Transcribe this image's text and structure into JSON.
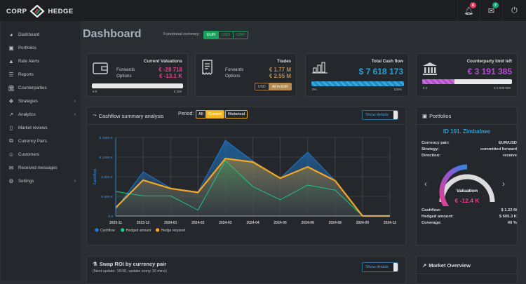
{
  "app": {
    "logo_left": "CORP",
    "logo_right": "HEDGE"
  },
  "topbar": {
    "notifications": {
      "icon": "bell-icon",
      "count": "6",
      "color": "#e0405a"
    },
    "messages": {
      "icon": "envelope-icon",
      "count": "7",
      "color": "#17a673"
    },
    "power": {
      "icon": "power-icon"
    }
  },
  "sidebar": {
    "items": [
      {
        "label": "Dashboard",
        "icon": "tachometer-icon",
        "has_children": false
      },
      {
        "label": "Portfolios",
        "icon": "briefcase-icon",
        "has_children": false
      },
      {
        "label": "Rate Alerts",
        "icon": "bell-icon",
        "has_children": false
      },
      {
        "label": "Reports",
        "icon": "list-alt-icon",
        "has_children": false
      },
      {
        "label": "Counterparties",
        "icon": "bank-icon",
        "has_children": false
      },
      {
        "label": "Strategies",
        "icon": "cubes-icon",
        "has_children": true
      },
      {
        "label": "Analytics",
        "icon": "area-chart-icon",
        "has_children": true
      },
      {
        "label": "Market reviews",
        "icon": "file-icon",
        "has_children": false
      },
      {
        "label": "Currency Pairs",
        "icon": "clone-icon",
        "has_children": false
      },
      {
        "label": "Customers",
        "icon": "users-icon",
        "has_children": false
      },
      {
        "label": "Received messages",
        "icon": "envelope-icon",
        "has_children": false
      },
      {
        "label": "Settings",
        "icon": "cogs-icon",
        "has_children": true
      }
    ]
  },
  "header": {
    "title": "Dashboard",
    "functional_currency_label": "Functional currency:",
    "currencies": [
      {
        "label": "EUR",
        "active": true
      },
      {
        "label": "USD",
        "active": false
      },
      {
        "label": "GBP",
        "active": false
      }
    ]
  },
  "kpis": {
    "valuations": {
      "title": "Current Valuations",
      "forwards_label": "Forwards",
      "forwards_value": "€ -28 718",
      "options_label": "Options",
      "options_value": "€ -13.1 K",
      "bar_min": "€ 0",
      "bar_max": "€ 200",
      "bar_fill": 0,
      "value_color": "#e83e8c"
    },
    "trades": {
      "title": "Trades",
      "forwards_label": "Forwards",
      "forwards_value": "€ 1.77 M",
      "options_label": "Options",
      "options_value": "€ 2.55 M",
      "btn_usd": "USD",
      "btn_all_eur": "All in EUR",
      "value_color": "#b58a4e"
    },
    "cashflow": {
      "title": "Total Cash flow",
      "value": "$ 7 618 173",
      "bar_min": "0%",
      "bar_max": "100%",
      "bar_fill": 1.0,
      "value_color": "#2a9fd6"
    },
    "counterparty": {
      "title": "Counterparty limit left",
      "value": "€ 3 191 385",
      "bar_min": "€ 0",
      "bar_max": "€ 5 000 000",
      "bar_fill": 0.36,
      "value_color": "#b44fd0"
    }
  },
  "cashflow_panel": {
    "title": "Cashflow summary analysis",
    "period_label": "Period:",
    "periods": [
      {
        "label": "All",
        "active": false
      },
      {
        "label": "Current",
        "active": true
      },
      {
        "label": "Historical",
        "active": false
      }
    ],
    "details_label": "Show details"
  },
  "chart_data": {
    "type": "area",
    "title": "",
    "xlabel": "",
    "ylabel": "Cashflow",
    "categories": [
      "2023-11",
      "2023-12",
      "2024-01",
      "2024-02",
      "2024-03",
      "2024-04",
      "2024-05",
      "2024-06",
      "2024-08",
      "2024-09",
      "2024-12"
    ],
    "ylim": [
      0,
      1600
    ],
    "yticks": [
      0,
      400,
      800,
      1200,
      1600
    ],
    "ytick_labels": [
      "$ 0",
      "$ 400 K",
      "$ 800 K",
      "$ 1200 K",
      "$ 1600 K"
    ],
    "grid": true,
    "legend_position": "bottom-left",
    "series": [
      {
        "name": "Cashflow",
        "color": "#1f7fe0",
        "values": [
          140,
          900,
          570,
          490,
          1540,
          1120,
          770,
          1300,
          720,
          10,
          10
        ]
      },
      {
        "name": "Hedged amount",
        "color": "#1ecf8a",
        "values": [
          500,
          410,
          410,
          120,
          1130,
          600,
          330,
          630,
          530,
          0,
          0
        ]
      },
      {
        "name": "Hedge required",
        "color": "#f5a623",
        "values": [
          170,
          730,
          560,
          480,
          1170,
          1100,
          770,
          1000,
          720,
          0,
          0
        ]
      }
    ]
  },
  "portfolios": {
    "title": "Portfolios",
    "name": "ID 101. Zimbabwe",
    "currency_pair_label": "Currency pair:",
    "currency_pair": "EUR/USD",
    "strategy_label": "Strategy:",
    "strategy": "committed forward",
    "direction_label": "Direction:",
    "direction": "receive",
    "gauge_label": "Valuation",
    "gauge_value": "€ -12.4 K",
    "gauge_fill": 0.5,
    "cashflow_label": "Cashflow:",
    "cashflow": "$ 1.22 M",
    "hedged_label": "Hedged amount:",
    "hedged": "$ 605.3 K",
    "coverage_label": "Coverage:",
    "coverage": "49 %"
  },
  "swap_panel": {
    "title": "Swap ROI by currency pair",
    "subtitle": "(Next update: 15:50, update every 10 mins)",
    "details_label": "Show details"
  },
  "market_panel": {
    "title": "Market Overview"
  }
}
